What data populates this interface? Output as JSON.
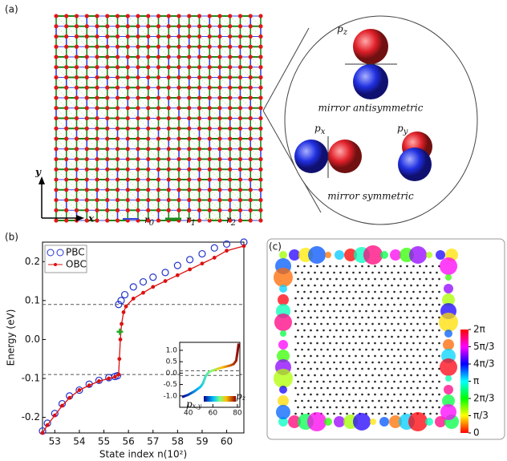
{
  "panels": {
    "a": {
      "label": "(a)",
      "axis_x": "x",
      "axis_y": "y",
      "legend": [
        {
          "base": "r",
          "sub": "0"
        },
        {
          "base": "r",
          "sub": "1"
        },
        {
          "base": "r",
          "sub": "2"
        }
      ],
      "orbitals": {
        "pz": {
          "base": "p",
          "sub": "z"
        },
        "px": {
          "base": "p",
          "sub": "x"
        },
        "py": {
          "base": "p",
          "sub": "y"
        },
        "antisymmetric": "mirror antisymmetric",
        "symmetric": "mirror symmetric"
      }
    },
    "b": {
      "label": "(b)"
    },
    "c": {
      "label": "(c)"
    }
  },
  "chart_data": [
    {
      "type": "line",
      "x_label": "State index n(10²)",
      "y_label": "Energy (eV)",
      "xlim": [
        52.5,
        60.7
      ],
      "xticks": [
        53,
        54,
        55,
        56,
        57,
        58,
        59,
        60
      ],
      "ylim": [
        -0.24,
        0.25
      ],
      "yticks": [
        -0.2,
        -0.1,
        {
          "value": 0,
          "label": "0.0"
        },
        0.1,
        0.2
      ],
      "hlines": [
        0.09,
        -0.09
      ],
      "highlight": {
        "x": 55.65,
        "y": 0.02,
        "color": "#22aa22"
      },
      "series": [
        {
          "name": "PBC",
          "color": "#2233cc",
          "style": "markers",
          "x": [
            52.5,
            52.7,
            53,
            53.3,
            53.6,
            54,
            54.4,
            54.8,
            55.2,
            55.45,
            55.55,
            55.6,
            55.7,
            55.85,
            56.2,
            56.6,
            57,
            57.5,
            58,
            58.5,
            59,
            59.5,
            60,
            60.7
          ],
          "values": [
            -0.235,
            -0.215,
            -0.19,
            -0.165,
            -0.145,
            -0.13,
            -0.115,
            -0.105,
            -0.098,
            -0.095,
            -0.093,
            0.09,
            0.1,
            0.115,
            0.135,
            0.148,
            0.16,
            0.172,
            0.19,
            0.205,
            0.22,
            0.235,
            0.245,
            0.25
          ]
        },
        {
          "name": "OBC",
          "color": "#dd1111",
          "style": "line-markers",
          "x": [
            52.5,
            52.7,
            53,
            53.3,
            53.6,
            54,
            54.4,
            54.8,
            55.2,
            55.45,
            55.6,
            55.63,
            55.67,
            55.72,
            55.8,
            55.9,
            56.2,
            56.6,
            57,
            57.5,
            58,
            58.5,
            59,
            59.5,
            60,
            60.7
          ],
          "values": [
            -0.24,
            -0.22,
            -0.195,
            -0.17,
            -0.15,
            -0.13,
            -0.118,
            -0.107,
            -0.1,
            -0.096,
            -0.09,
            -0.05,
            0.0,
            0.04,
            0.07,
            0.085,
            0.105,
            0.12,
            0.135,
            0.15,
            0.165,
            0.18,
            0.195,
            0.21,
            0.228,
            0.24
          ]
        }
      ]
    },
    {
      "type": "inset-line",
      "xlim": [
        33,
        82
      ],
      "xticks": [
        40,
        60,
        80
      ],
      "ylim": [
        -1.5,
        1.35
      ],
      "yticks": [
        {
          "value": -1,
          "label": "-1.0"
        },
        -0.5,
        {
          "value": 0,
          "label": "0.0"
        },
        0.5,
        {
          "value": 1,
          "label": "1.0"
        }
      ],
      "hlines": [
        0.1,
        -0.1
      ],
      "colorbar_labels": [
        {
          "base": "p",
          "sub": "x,y"
        },
        {
          "base": "p",
          "sub": "z"
        }
      ],
      "series": [
        {
          "x": [
            35,
            40,
            45,
            50,
            52,
            54,
            56,
            58,
            62,
            66,
            70,
            74,
            77,
            79,
            80,
            81
          ],
          "values": [
            -1.05,
            -0.95,
            -0.8,
            -0.6,
            -0.45,
            -0.15,
            0,
            0.08,
            0.15,
            0.22,
            0.28,
            0.33,
            0.4,
            0.55,
            0.9,
            1.3
          ]
        }
      ]
    },
    {
      "type": "colorbar",
      "ylim": [
        0,
        6.2832
      ],
      "yticks": [
        {
          "value": 0,
          "label": "0"
        },
        {
          "value": 1.0472,
          "label": "π/3"
        },
        {
          "value": 2.0944,
          "label": "2π/3"
        },
        {
          "value": 3.1416,
          "label": "π"
        },
        {
          "value": 4.1888,
          "label": "4π/3"
        },
        {
          "value": 5.236,
          "label": "5π/3"
        },
        {
          "value": 6.2832,
          "label": "2π"
        }
      ]
    }
  ]
}
